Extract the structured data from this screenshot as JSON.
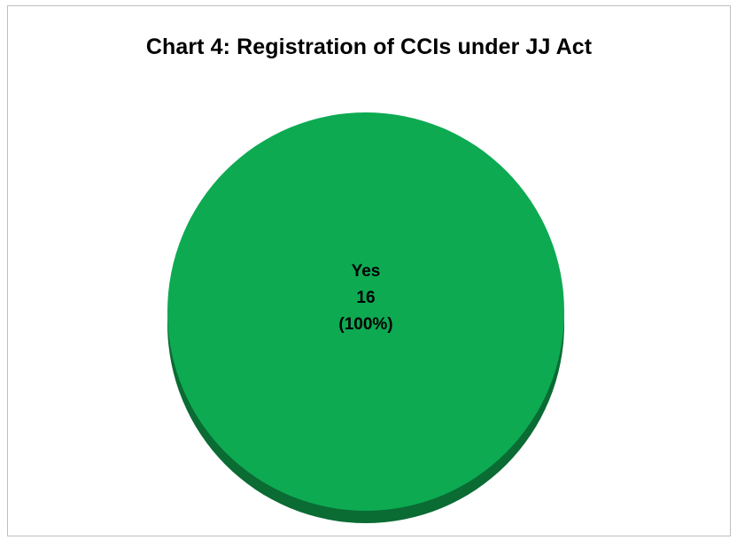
{
  "chart_data": {
    "type": "pie",
    "title": "Chart 4: Registration of CCIs under JJ Act",
    "categories": [
      "Yes"
    ],
    "values": [
      16
    ],
    "percent_labels": [
      "(100%)"
    ],
    "colors": [
      "#0DAA52"
    ],
    "shade_colors": [
      "#0A6B33"
    ],
    "legend": "none",
    "style": "3d"
  }
}
